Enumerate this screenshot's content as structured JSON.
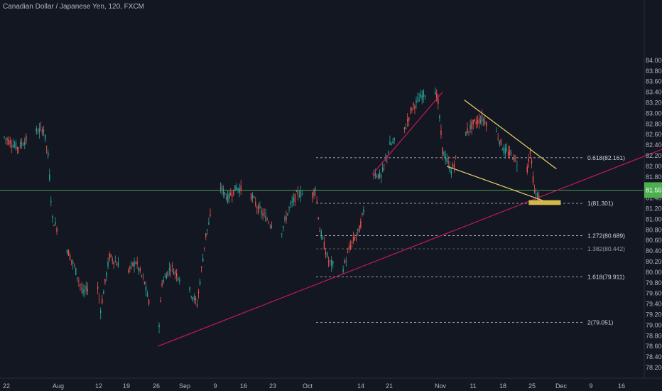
{
  "chart_data": {
    "type": "line",
    "title": "Canadian Dollar / Japanese Yen, 120, FXCM",
    "price_scale": {
      "ticks": [
        "84.000",
        "83.800",
        "83.600",
        "83.400",
        "83.200",
        "83.000",
        "82.800",
        "82.600",
        "82.400",
        "82.200",
        "82.000",
        "81.800",
        "81.600",
        "81.400",
        "81.200",
        "81.000",
        "80.800",
        "80.600",
        "80.400",
        "80.200",
        "80.000",
        "79.800",
        "79.600",
        "79.400",
        "79.200",
        "79.000",
        "78.800",
        "78.600",
        "78.400",
        "78.200"
      ],
      "ylim": [
        78.1,
        84.1
      ],
      "current_price_label": "81.55",
      "current_price": 81.55
    },
    "time_scale": {
      "ticks": [
        "22",
        "Aug",
        "12",
        "19",
        "26",
        "Sep",
        "9",
        "16",
        "23",
        "Oct",
        "14",
        "21",
        "Nov",
        "11",
        "18",
        "25",
        "Dec",
        "9",
        "16"
      ]
    },
    "series": [
      {
        "x": [
          "Jul 22",
          "Jul 25",
          "Jul 29",
          "Jul 31",
          "Aug 1",
          "Aug 2",
          "Aug 5",
          "Aug 7",
          "Aug 9",
          "Aug 12",
          "Aug 13",
          "Aug 15",
          "Aug 19",
          "Aug 21",
          "Aug 23",
          "Aug 26",
          "Aug 27",
          "Aug 29",
          "Sep 2",
          "Sep 4",
          "Sep 6",
          "Sep 9",
          "Sep 11",
          "Sep 13",
          "Sep 16",
          "Sep 18",
          "Sep 20",
          "Sep 23",
          "Sep 25",
          "Sep 27",
          "Sep 30",
          "Oct 1",
          "Oct 2",
          "Oct 4",
          "Oct 7",
          "Oct 9",
          "Oct 11",
          "Oct 14",
          "Oct 16",
          "Oct 18",
          "Oct 21",
          "Oct 23",
          "Oct 25",
          "Oct 28",
          "Oct 29",
          "Oct 30",
          "Nov 1",
          "Nov 4",
          "Nov 6",
          "Nov 8",
          "Nov 11",
          "Nov 13",
          "Nov 15",
          "Nov 18",
          "Nov 19",
          "Nov 20",
          "Nov 21"
        ],
        "values": [
          82.55,
          82.35,
          82.65,
          82.7,
          82.2,
          81.0,
          80.5,
          80.1,
          79.6,
          79.9,
          79.3,
          80.3,
          80.0,
          80.2,
          79.8,
          78.65,
          79.8,
          80.1,
          79.7,
          79.4,
          80.7,
          81.65,
          81.4,
          81.6,
          81.5,
          81.2,
          81.0,
          80.7,
          81.2,
          81.5,
          81.4,
          81.6,
          80.8,
          80.2,
          80.0,
          80.5,
          80.8,
          81.9,
          81.8,
          82.4,
          82.6,
          83.1,
          83.3,
          83.55,
          83.2,
          82.3,
          81.9,
          82.6,
          82.8,
          82.9,
          82.7,
          82.3,
          82.2,
          81.8,
          82.3,
          81.5,
          81.4
        ]
      }
    ],
    "fibonacci": [
      {
        "label": "0.618(82.161)",
        "value": 82.161
      },
      {
        "label": "1(81.301)",
        "value": 81.301
      },
      {
        "label": "1.272(80.689)",
        "value": 80.689
      },
      {
        "label": "1.382(80.442)",
        "value": 80.442
      },
      {
        "label": "1.618(79.911)",
        "value": 79.911
      },
      {
        "label": "2(79.051)",
        "value": 79.051
      }
    ],
    "trendlines": [
      {
        "name": "long-uptrend",
        "from": [
          "Aug 26",
          78.6
        ],
        "to": [
          "Dec 20",
          82.35
        ],
        "color": "#c2185b"
      },
      {
        "name": "channel-support",
        "from": [
          "Oct 14",
          81.85
        ],
        "to": [
          "Oct 30",
          83.4
        ],
        "color": "#c2185b"
      },
      {
        "name": "wedge-upper",
        "from": [
          "Nov 4",
          83.25
        ],
        "to": [
          "Nov 25",
          81.95
        ],
        "color": "#e8d36a"
      },
      {
        "name": "wedge-lower",
        "from": [
          "Oct 31",
          82.0
        ],
        "to": [
          "Nov 22",
          81.35
        ],
        "color": "#e8d36a"
      }
    ],
    "horizontal_line": {
      "value": 81.55,
      "color": "#4caf50"
    },
    "highlight_zone": {
      "from": "Nov 19",
      "to": "Nov 25",
      "low": 81.27,
      "high": 81.36,
      "color": "#d4b84a"
    },
    "colors": {
      "background": "#131722",
      "up": "#26a69a",
      "down": "#ef5350",
      "text": "#b2b5be",
      "fib": "#d1d4dc"
    },
    "grid": false
  }
}
